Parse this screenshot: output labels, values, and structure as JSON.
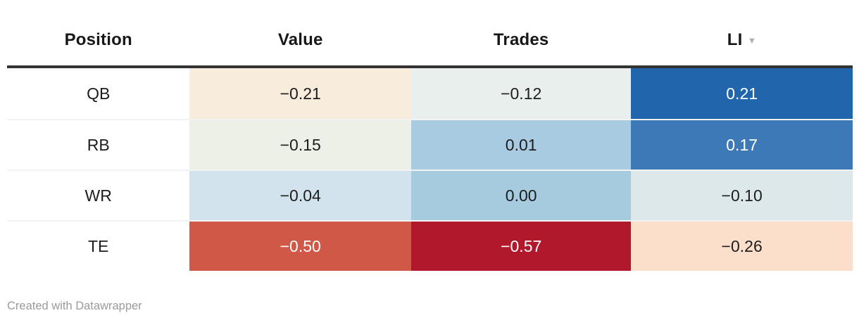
{
  "table": {
    "columns": [
      {
        "label": "Position"
      },
      {
        "label": "Value"
      },
      {
        "label": "Trades"
      },
      {
        "label": "LI"
      }
    ],
    "sort": {
      "column": "LI",
      "direction": "descending",
      "icon": "▼"
    },
    "rows": [
      {
        "position": "QB",
        "cells": [
          {
            "text": "−0.21",
            "bg": "#f8ecdd",
            "fg": "#1d1d1d"
          },
          {
            "text": "−0.12",
            "bg": "#e9efec",
            "fg": "#1d1d1d"
          },
          {
            "text": "0.21",
            "bg": "#2166ac",
            "fg": "#ffffff"
          }
        ]
      },
      {
        "position": "RB",
        "cells": [
          {
            "text": "−0.15",
            "bg": "#edf0e6",
            "fg": "#1d1d1d"
          },
          {
            "text": "0.01",
            "bg": "#a9cbe2",
            "fg": "#1d1d1d"
          },
          {
            "text": "0.17",
            "bg": "#3d79b7",
            "fg": "#ffffff"
          }
        ]
      },
      {
        "position": "WR",
        "cells": [
          {
            "text": "−0.04",
            "bg": "#d3e3ee",
            "fg": "#1d1d1d"
          },
          {
            "text": "0.00",
            "bg": "#a6cade",
            "fg": "#1d1d1d"
          },
          {
            "text": "−0.10",
            "bg": "#dde8ea",
            "fg": "#1d1d1d"
          }
        ]
      },
      {
        "position": "TE",
        "cells": [
          {
            "text": "−0.50",
            "bg": "#d05846",
            "fg": "#ffffff"
          },
          {
            "text": "−0.57",
            "bg": "#b2182b",
            "fg": "#ffffff"
          },
          {
            "text": "−0.26",
            "bg": "#fcdfca",
            "fg": "#1d1d1d"
          }
        ]
      }
    ]
  },
  "footer": {
    "credit": "Created with Datawrapper"
  },
  "colors": {
    "header_rule": "#333333",
    "header_text": "#18181a",
    "row_separator": "#f2f2f2",
    "credit_text": "#9a9a9a",
    "sort_arrow": "#b3b3b3"
  },
  "chart_data": {
    "type": "heatmap",
    "title": "",
    "columns": [
      "Position",
      "Value",
      "Trades",
      "LI"
    ],
    "rows": [
      {
        "Position": "QB",
        "Value": -0.21,
        "Trades": -0.12,
        "LI": 0.21
      },
      {
        "Position": "RB",
        "Value": -0.15,
        "Trades": 0.01,
        "LI": 0.17
      },
      {
        "Position": "WR",
        "Value": -0.04,
        "Trades": 0.0,
        "LI": -0.1
      },
      {
        "Position": "TE",
        "Value": -0.5,
        "Trades": -0.57,
        "LI": -0.26
      }
    ],
    "sorted_by": "LI",
    "sort_direction": "descending",
    "color_scale": "diverging red-white-blue (RdBu), negative=red, positive=blue",
    "annotations": [
      "Created with Datawrapper"
    ]
  }
}
